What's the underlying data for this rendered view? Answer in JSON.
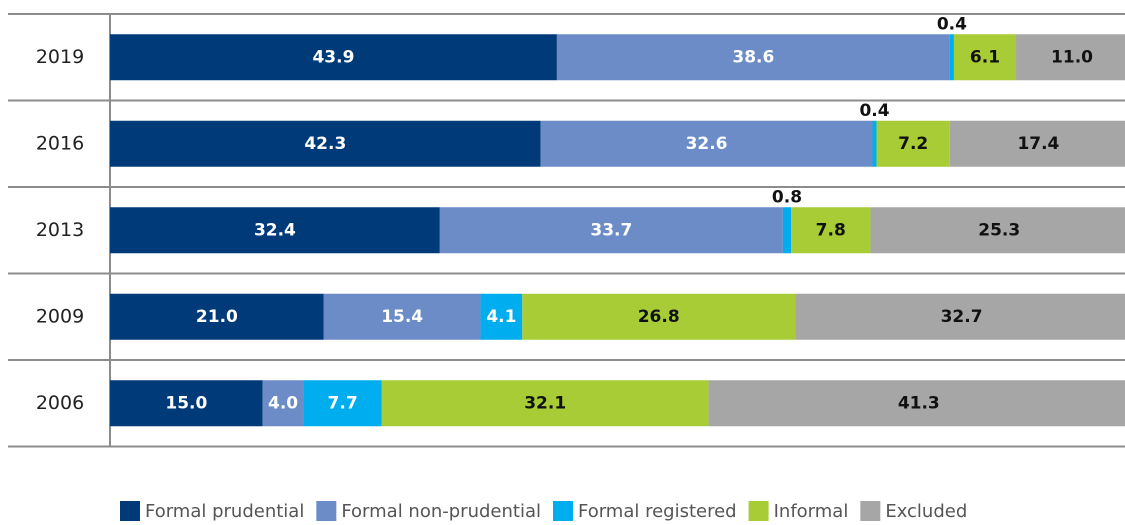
{
  "chart_data": {
    "type": "stacked-bar",
    "orientation": "horizontal",
    "categories": [
      "2019",
      "2016",
      "2013",
      "2009",
      "2006"
    ],
    "xlim": [
      0,
      100
    ],
    "series": [
      {
        "name": "Formal prudential",
        "color": "#003a78",
        "label_color": "#ffffff",
        "values": [
          43.9,
          42.3,
          32.4,
          21.0,
          15.0
        ],
        "value_labels": [
          "43.9",
          "42.3",
          "32.4",
          "21.0",
          "15.0"
        ]
      },
      {
        "name": "Formal non-prudential",
        "color": "#6b8cc7",
        "label_color": "#ffffff",
        "values": [
          38.6,
          32.6,
          33.7,
          15.4,
          4.0
        ],
        "value_labels": [
          "38.6",
          "32.6",
          "33.7",
          "15.4",
          "4.0"
        ]
      },
      {
        "name": "Formal registered",
        "color": "#00adef",
        "label_color": "#ffffff",
        "values": [
          0.4,
          0.4,
          0.8,
          4.1,
          7.7
        ],
        "value_labels": [
          "0.4",
          "0.4",
          "0.8",
          "4.1",
          "7.7"
        ]
      },
      {
        "name": "Informal",
        "color": "#a8cc35",
        "label_color": "#111111",
        "values": [
          6.1,
          7.2,
          7.8,
          26.8,
          32.1
        ],
        "value_labels": [
          "6.1",
          "7.2",
          "7.8",
          "26.8",
          "32.1"
        ]
      },
      {
        "name": "Excluded",
        "color": "#a6a6a6",
        "label_color": "#111111",
        "values": [
          11.0,
          17.4,
          25.3,
          32.7,
          41.3
        ],
        "value_labels": [
          "11.0",
          "17.4",
          "25.3",
          "32.7",
          "41.3"
        ]
      }
    ],
    "legend": "bottom"
  }
}
